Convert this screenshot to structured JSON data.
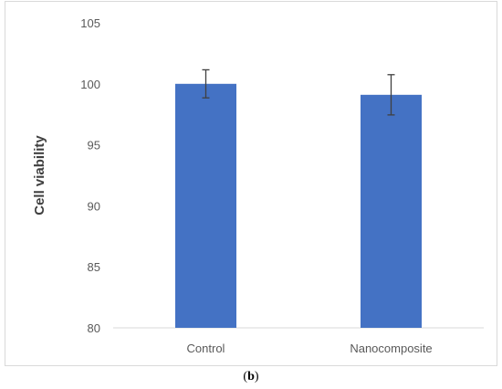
{
  "chart_data": {
    "type": "bar",
    "categories": [
      "Control",
      "Nanocomposite"
    ],
    "values": [
      100.0,
      99.1
    ],
    "errors": [
      1.15,
      1.65
    ],
    "ylabel": "Cell viability",
    "ylim": [
      80,
      105
    ],
    "yticks": [
      80,
      85,
      90,
      95,
      100,
      105
    ],
    "grid": false,
    "bar_color": "#4472C4",
    "error_color": "#404040"
  },
  "caption": {
    "open": "(",
    "letter": "b",
    "close": ")"
  }
}
